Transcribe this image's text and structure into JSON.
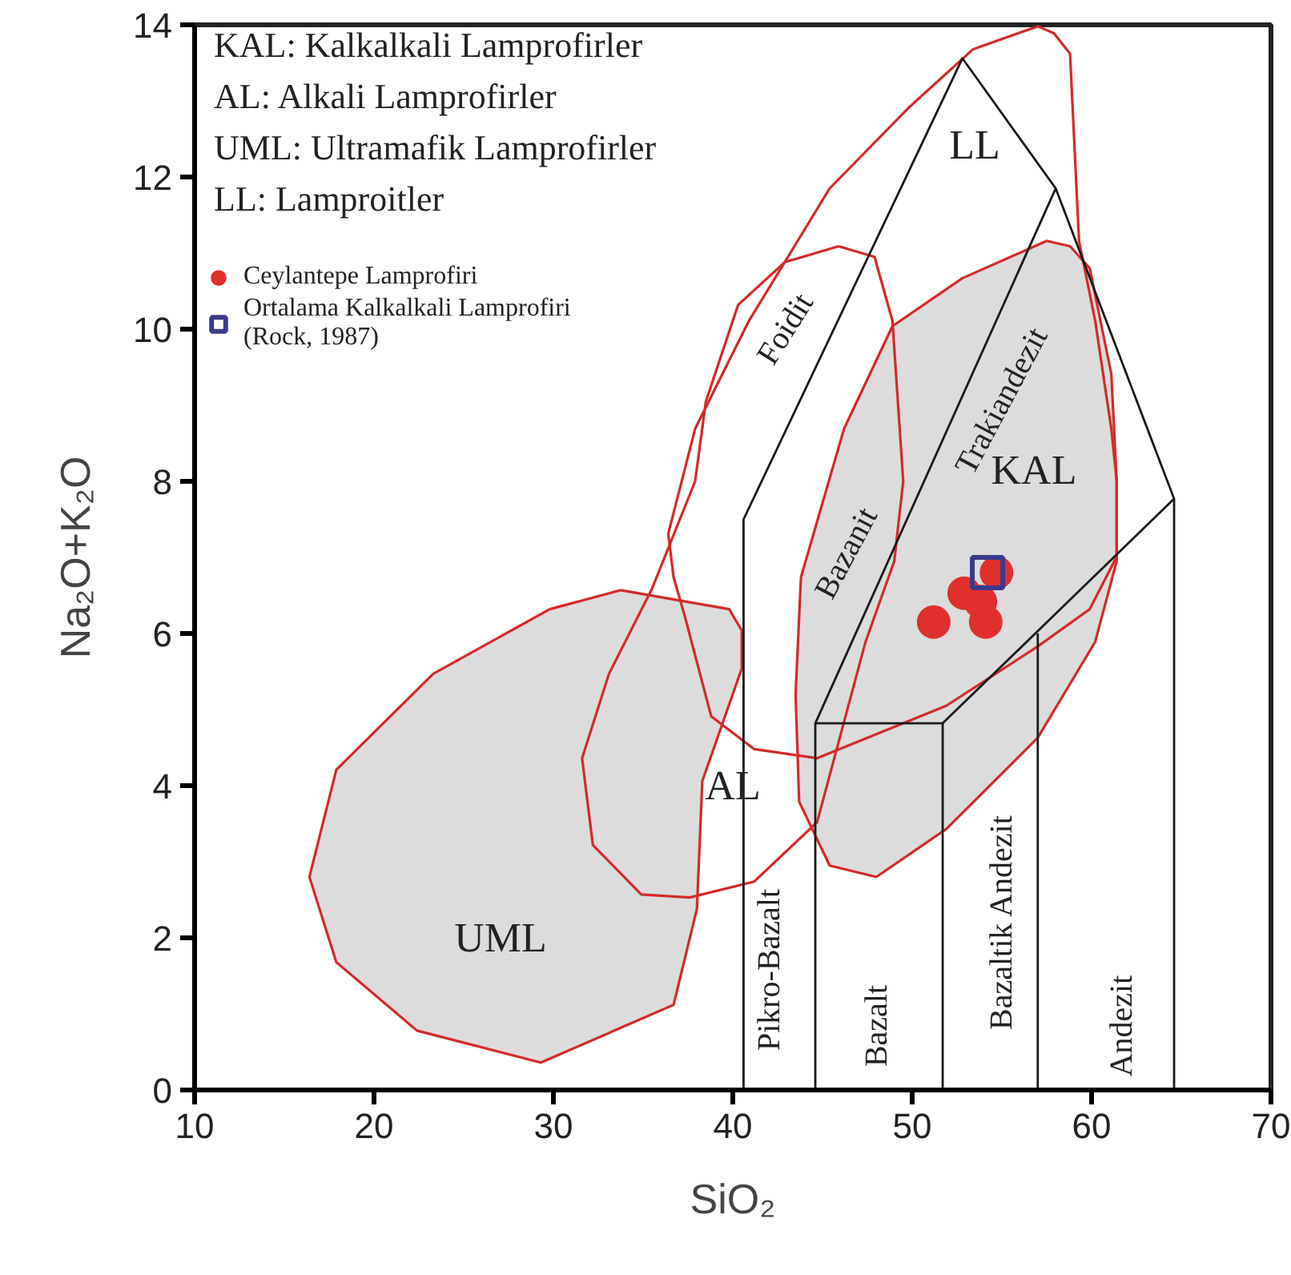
{
  "chart_data": {
    "type": "scatter",
    "xlabel": "SiO₂",
    "ylabel": "Na₂O+K₂O",
    "xlim": [
      10,
      70
    ],
    "ylim": [
      0,
      14
    ],
    "xticks": [
      10,
      20,
      30,
      40,
      50,
      60,
      70
    ],
    "yticks": [
      0,
      2,
      4,
      6,
      8,
      10,
      12,
      14
    ],
    "grid": false,
    "legend": "top left",
    "annotations": [
      "KAL: Kalkalkali Lamprofirler",
      "AL: Alkali Lamprofirler",
      "UML: Ultramafik Lamprofirler",
      "LL: Lamproitler",
      "KAL",
      "LL",
      "AL",
      "UML",
      "Foidit",
      "Trakiandezit",
      "Bazanit",
      "Pikro-Bazalt",
      "Bazalt",
      "Bazaltik Andezit",
      "Andezit"
    ],
    "series": [
      {
        "type": "area",
        "color": "#ffffff",
        "x": [
          45.9,
          47.9,
          48.9,
          49.5,
          49.0,
          47.4,
          44.7,
          41.2,
          37.6,
          34.9,
          32.2,
          31.6,
          33.1,
          35.5,
          37.9,
          38.5,
          40.3,
          42.9,
          45.9
        ],
        "values": [
          11.09,
          10.95,
          10.11,
          8.0,
          6.95,
          5.89,
          3.52,
          2.74,
          2.53,
          2.57,
          3.22,
          4.36,
          5.47,
          6.59,
          8.0,
          9.05,
          10.32,
          10.88,
          11.09
        ]
      },
      {
        "type": "area",
        "color": "#ffffff",
        "x": [
          36.4,
          37.9,
          40.9,
          45.4,
          49.8,
          53.4,
          57.0,
          57.9,
          58.8,
          59.3,
          60.2,
          61.1,
          61.4,
          61.4,
          59.9,
          57.0,
          51.9,
          44.7,
          41.2,
          38.8,
          37.3,
          36.7,
          36.4
        ],
        "values": [
          7.31,
          8.69,
          10.11,
          11.85,
          12.91,
          13.68,
          13.98,
          13.89,
          13.62,
          11.16,
          10.11,
          8.69,
          8.0,
          7.01,
          6.32,
          5.83,
          5.05,
          4.36,
          4.48,
          4.91,
          6.25,
          6.74,
          7.31
        ]
      },
      {
        "type": "area",
        "color": "#dcdcdc",
        "x": [
          33.75,
          39.8,
          40.5,
          40.5,
          38.3,
          38.0,
          36.7,
          29.3,
          22.4,
          17.9,
          16.4,
          17.9,
          23.3,
          29.8,
          33.75
        ],
        "values": [
          6.57,
          6.32,
          6.04,
          5.54,
          4.06,
          2.38,
          1.12,
          0.36,
          0.78,
          1.68,
          2.8,
          4.21,
          5.47,
          6.32,
          6.57
        ]
      },
      {
        "type": "area",
        "color": "#dcdcdc",
        "x": [
          43.8,
          46.2,
          48.9,
          52.8,
          57.5,
          58.8,
          59.9,
          61.1,
          61.4,
          61.4,
          60.2,
          57.0,
          51.9,
          48.0,
          45.4,
          43.7,
          43.5,
          43.8
        ],
        "values": [
          6.74,
          8.69,
          10.04,
          10.67,
          11.16,
          11.09,
          10.8,
          9.41,
          8.0,
          6.95,
          5.89,
          4.63,
          3.43,
          2.8,
          2.95,
          3.79,
          5.2,
          6.74
        ]
      },
      {
        "type": "line",
        "color": "#1a1a1a",
        "x": [
          40.6,
          40.6,
          52.8,
          58.0,
          64.6,
          64.6
        ],
        "values": [
          0,
          7.5,
          13.56,
          11.85,
          7.77,
          0
        ]
      },
      {
        "type": "line",
        "color": "#1a1a1a",
        "x": [
          44.6,
          44.6,
          51.7,
          51.7
        ],
        "values": [
          0,
          4.82,
          4.82,
          0
        ]
      },
      {
        "type": "line",
        "color": "#1a1a1a",
        "x": [
          44.6,
          58.0
        ],
        "values": [
          4.82,
          11.85
        ]
      },
      {
        "type": "line",
        "color": "#1a1a1a",
        "x": [
          51.7,
          64.6
        ],
        "values": [
          4.82,
          7.77
        ]
      },
      {
        "type": "line",
        "color": "#1a1a1a",
        "x": [
          57.0,
          57.0
        ],
        "values": [
          0,
          6.0
        ]
      },
      {
        "name": "Ceylantepe Lamprofiri",
        "marker": "circle",
        "color": "#e0302e",
        "x": [
          51.2,
          52.9,
          53.8,
          54.1,
          54.7
        ],
        "values": [
          6.15,
          6.53,
          6.42,
          6.15,
          6.8
        ]
      },
      {
        "name": "Ortalama Kalkalkali Lamprofiri (Rock, 1987)",
        "marker": "square",
        "color": "#3a3a8c",
        "x": [
          54.2
        ],
        "values": [
          6.8
        ]
      }
    ]
  }
}
